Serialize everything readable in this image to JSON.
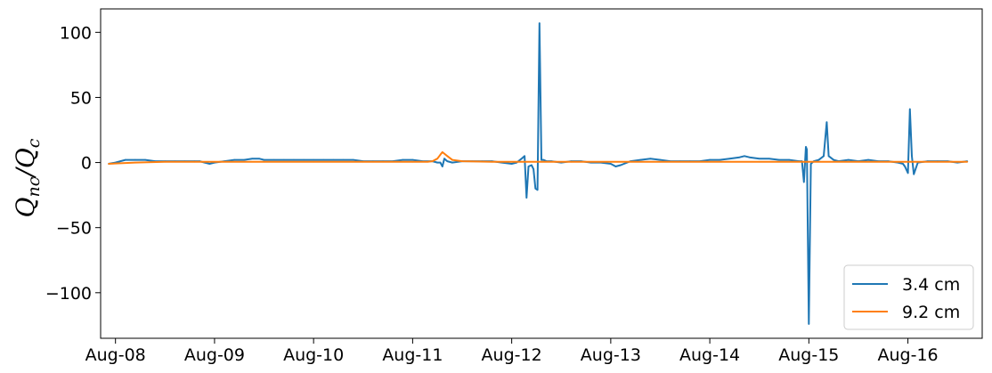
{
  "chart_data": {
    "type": "line",
    "ylabel": "Q_nc/Q_c",
    "ylabel_main": "Q",
    "ylabel_sub1": "nc",
    "ylabel_sep": "/Q",
    "ylabel_sub2": "c",
    "xlim": [
      7.85,
      16.75
    ],
    "ylim": [
      -135,
      118
    ],
    "grid": false,
    "legend_position": "bottom-right",
    "x_ticks": [
      {
        "value": 8,
        "label": "Aug-08"
      },
      {
        "value": 9,
        "label": "Aug-09"
      },
      {
        "value": 10,
        "label": "Aug-10"
      },
      {
        "value": 11,
        "label": "Aug-11"
      },
      {
        "value": 12,
        "label": "Aug-12"
      },
      {
        "value": 13,
        "label": "Aug-13"
      },
      {
        "value": 14,
        "label": "Aug-14"
      },
      {
        "value": 15,
        "label": "Aug-15"
      },
      {
        "value": 16,
        "label": "Aug-16"
      }
    ],
    "y_ticks": [
      {
        "value": 100,
        "label": "100"
      },
      {
        "value": 50,
        "label": "50"
      },
      {
        "value": 0,
        "label": "0"
      },
      {
        "value": -50,
        "label": "−50"
      },
      {
        "value": -100,
        "label": "−100"
      }
    ],
    "series": [
      {
        "name": "3.4 cm",
        "color": "#1f77b4",
        "x": [
          7.93,
          8.0,
          8.05,
          8.1,
          8.2,
          8.3,
          8.4,
          8.5,
          8.6,
          8.7,
          8.8,
          8.85,
          8.9,
          8.95,
          9.0,
          9.1,
          9.2,
          9.3,
          9.38,
          9.45,
          9.5,
          9.6,
          9.7,
          9.8,
          9.9,
          10.0,
          10.1,
          10.2,
          10.3,
          10.4,
          10.5,
          10.6,
          10.7,
          10.8,
          10.9,
          11.0,
          11.1,
          11.2,
          11.25,
          11.28,
          11.3,
          11.32,
          11.35,
          11.4,
          11.5,
          11.6,
          11.7,
          11.8,
          11.9,
          12.0,
          12.05,
          12.1,
          12.13,
          12.15,
          12.17,
          12.2,
          12.22,
          12.24,
          12.26,
          12.28,
          12.3,
          12.32,
          12.35,
          12.4,
          12.5,
          12.6,
          12.7,
          12.8,
          12.9,
          13.0,
          13.05,
          13.1,
          13.2,
          13.3,
          13.4,
          13.5,
          13.6,
          13.7,
          13.8,
          13.9,
          14.0,
          14.1,
          14.2,
          14.3,
          14.35,
          14.4,
          14.5,
          14.6,
          14.7,
          14.8,
          14.9,
          14.93,
          14.95,
          14.97,
          14.98,
          15.0,
          15.02,
          15.05,
          15.1,
          15.15,
          15.18,
          15.2,
          15.25,
          15.3,
          15.4,
          15.5,
          15.6,
          15.7,
          15.8,
          15.9,
          15.95,
          15.97,
          16.0,
          16.02,
          16.04,
          16.06,
          16.1,
          16.2,
          16.3,
          16.4,
          16.5,
          16.6
        ],
        "y": [
          -1,
          0,
          1,
          2,
          2,
          2,
          1,
          1,
          1,
          1,
          1,
          1,
          0,
          -1,
          0,
          1,
          2,
          2,
          3,
          3,
          2,
          2,
          2,
          2,
          2,
          2,
          2,
          2,
          2,
          2,
          1,
          1,
          1,
          1,
          2,
          2,
          1,
          1,
          0,
          0,
          -3,
          3,
          1,
          0,
          1,
          1,
          1,
          1,
          0,
          -1,
          0,
          3,
          5,
          -27,
          -3,
          -2,
          -5,
          -20,
          -21,
          107,
          2,
          2,
          1,
          1,
          0,
          1,
          1,
          0,
          0,
          -1,
          -3,
          -2,
          1,
          2,
          3,
          2,
          1,
          1,
          1,
          1,
          2,
          2,
          3,
          4,
          5,
          4,
          3,
          3,
          2,
          2,
          1,
          1,
          -15,
          12,
          10,
          -124,
          -1,
          1,
          2,
          5,
          31,
          5,
          2,
          1,
          2,
          1,
          2,
          1,
          1,
          0,
          -1,
          -3,
          -8,
          41,
          5,
          -9,
          0,
          1,
          1,
          1,
          0,
          1
        ]
      },
      {
        "name": "9.2 cm",
        "color": "#ff7f0e",
        "x": [
          7.93,
          8.2,
          8.5,
          8.8,
          9.0,
          9.5,
          10.0,
          10.5,
          11.0,
          11.15,
          11.2,
          11.25,
          11.28,
          11.3,
          11.35,
          11.4,
          11.5,
          11.8,
          12.0,
          12.3,
          12.6,
          13.0,
          13.5,
          14.0,
          14.5,
          15.0,
          15.5,
          16.0,
          16.3,
          16.6
        ],
        "y": [
          -1,
          0,
          0.5,
          0.5,
          0.5,
          0.5,
          0.5,
          0.5,
          0.5,
          0.5,
          1,
          3,
          6,
          8,
          5,
          2,
          1,
          0.5,
          0.5,
          0.5,
          0.5,
          0.5,
          0.5,
          0.5,
          0.5,
          0.5,
          0.5,
          0.5,
          0.5,
          0.5
        ]
      }
    ]
  }
}
